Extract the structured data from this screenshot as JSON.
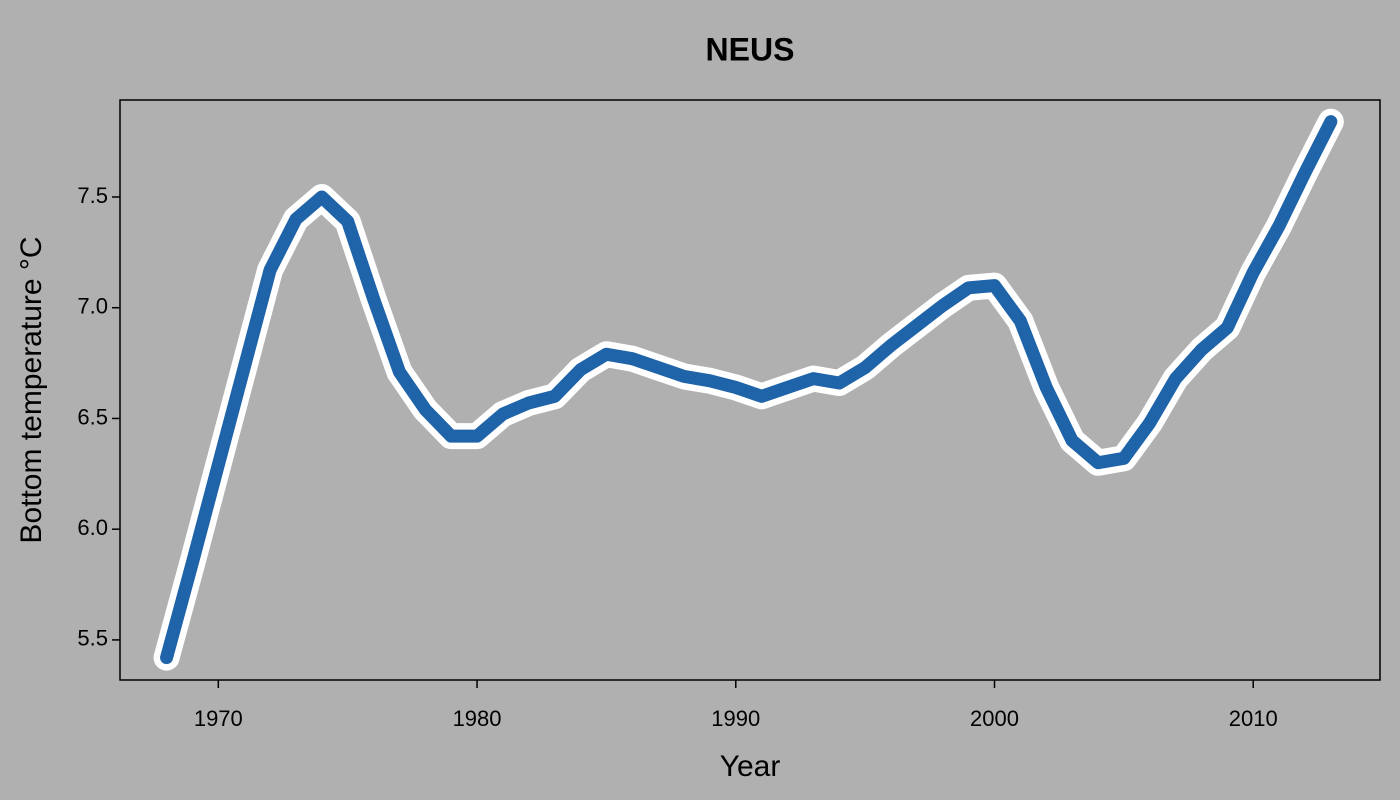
{
  "chart_data": {
    "type": "line",
    "title": "NEUS",
    "x_label": "Year",
    "y_label": "Bottom temperature °C",
    "x": [
      1968,
      1969,
      1970,
      1971,
      1972,
      1973,
      1974,
      1975,
      1976,
      1977,
      1978,
      1979,
      1980,
      1981,
      1982,
      1983,
      1984,
      1985,
      1986,
      1987,
      1988,
      1989,
      1990,
      1991,
      1992,
      1993,
      1994,
      1995,
      1996,
      1997,
      1998,
      1999,
      2000,
      2001,
      2002,
      2003,
      2004,
      2005,
      2006,
      2007,
      2008,
      2009,
      2010,
      2011,
      2012,
      2013
    ],
    "values": [
      5.42,
      5.85,
      6.29,
      6.73,
      7.17,
      7.4,
      7.5,
      7.39,
      7.04,
      6.71,
      6.54,
      6.42,
      6.42,
      6.52,
      6.57,
      6.6,
      6.72,
      6.79,
      6.77,
      6.73,
      6.69,
      6.67,
      6.64,
      6.6,
      6.64,
      6.68,
      6.66,
      6.73,
      6.83,
      6.92,
      7.01,
      7.09,
      7.1,
      6.94,
      6.64,
      6.4,
      6.3,
      6.32,
      6.48,
      6.68,
      6.81,
      6.91,
      7.16,
      7.37,
      7.61,
      7.84
    ],
    "color": "#1f63a8",
    "outline_color": "#ffffff",
    "xlim": [
      1966.2,
      2014.9
    ],
    "xticks": [
      1970,
      1980,
      1990,
      2000,
      2010
    ],
    "ylim": [
      5.319,
      7.938
    ],
    "yticks": [
      {
        "value": 5.5,
        "label": "5.5"
      },
      {
        "value": 6,
        "label": "6.0"
      },
      {
        "value": 6.5,
        "label": "6.5"
      },
      {
        "value": 7,
        "label": "7.0"
      },
      {
        "value": 7.5,
        "label": "7.5"
      }
    ]
  }
}
